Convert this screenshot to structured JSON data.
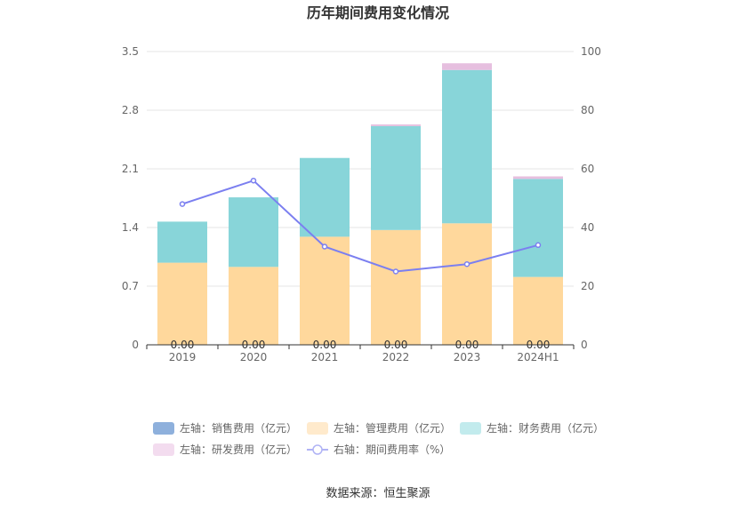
{
  "chart_data": {
    "type": "bar",
    "title": "历年期间费用变化情况",
    "categories": [
      "2019",
      "2020",
      "2021",
      "2022",
      "2023",
      "2024H1"
    ],
    "left_axis": {
      "ticks": [
        "0",
        "0.7",
        "1.4",
        "2.1",
        "2.8",
        "3.5"
      ],
      "ylim": [
        0,
        3.5
      ]
    },
    "right_axis": {
      "ticks": [
        "0",
        "20",
        "40",
        "60",
        "80",
        "100"
      ],
      "ylim": [
        0,
        100
      ]
    },
    "series": [
      {
        "name": "左轴：销售费用（亿元）",
        "axis": "left",
        "kind": "bar",
        "color": "#8eb0dc",
        "values": [
          0,
          0,
          0,
          0,
          0,
          0
        ]
      },
      {
        "name": "左轴：管理费用（亿元）",
        "axis": "left",
        "kind": "bar",
        "color": "#ffd89c",
        "values": [
          0.98,
          0.93,
          1.29,
          1.37,
          1.45,
          0.81
        ]
      },
      {
        "name": "左轴：财务费用（亿元）",
        "axis": "left",
        "kind": "bar",
        "color": "#88d5d9",
        "values": [
          0.49,
          0.83,
          0.94,
          1.24,
          1.83,
          1.17
        ]
      },
      {
        "name": "左轴：研发费用（亿元）",
        "axis": "left",
        "kind": "bar",
        "color": "#e6bfdf",
        "values": [
          0,
          0,
          0,
          0.02,
          0.08,
          0.03
        ]
      },
      {
        "name": "右轴：期间费用率（%）",
        "axis": "right",
        "kind": "line",
        "color": "#7b7ff0",
        "values": [
          48,
          56,
          33.5,
          25,
          27.5,
          34
        ]
      }
    ],
    "data_labels": [
      "0.00",
      "0.00",
      "0.00",
      "0.00",
      "0.00",
      "0.00"
    ],
    "legend_position": "bottom",
    "grid": true,
    "source": "数据来源：恒生聚源"
  }
}
